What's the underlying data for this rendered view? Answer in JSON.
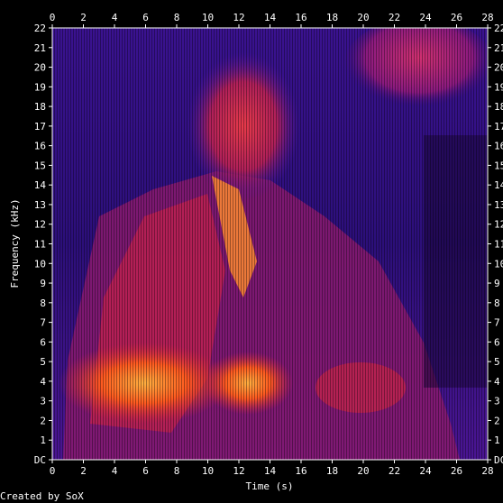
{
  "chart_data": {
    "type": "heatmap",
    "title": "",
    "xlabel": "Time (s)",
    "ylabel": "Frequency (kHz)",
    "x_range": [
      0,
      28
    ],
    "y_range": [
      0,
      22
    ],
    "x_ticks": [
      "0",
      "2",
      "4",
      "6",
      "8",
      "10",
      "12",
      "14",
      "16",
      "18",
      "20",
      "22",
      "24",
      "26",
      "28"
    ],
    "y_ticks": [
      "DC",
      "1",
      "2",
      "3",
      "4",
      "5",
      "6",
      "7",
      "8",
      "9",
      "10",
      "11",
      "12",
      "13",
      "14",
      "15",
      "16",
      "17",
      "18",
      "19",
      "20",
      "21",
      "22"
    ],
    "credit": "Created by SoX",
    "colormap": [
      "#000000",
      "#2a0a6e",
      "#5a1a9e",
      "#a01870",
      "#e02a3a",
      "#ff6a1a",
      "#ffd04a"
    ]
  }
}
